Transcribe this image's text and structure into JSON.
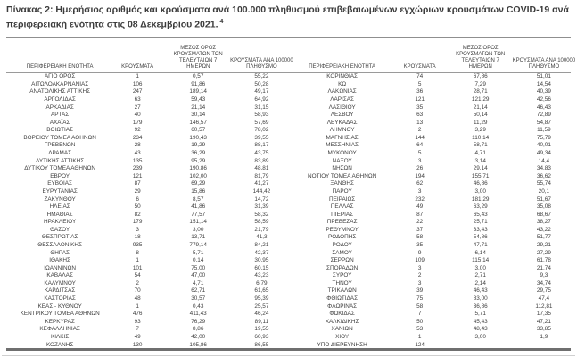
{
  "caption": {
    "text": "Πίνακας 2: Ημερήσιος αριθμός και κρούσματα ανά 100.000 πληθυσμού επιβεβαιωμένων εγχώριων κρουσμάτων COVID-19 ανά περιφερειακή ενότητα στις 08 Δεκεμβρίου 2021.",
    "footnote_marker": "4"
  },
  "table": {
    "columns": [
      "ΠΕΡΙΦΕΡΕΙΑΚΗ ΕΝΟΤΗΤΑ",
      "ΚΡΟΥΣΜΑΤΑ",
      "ΜΕΣΟΣ ΟΡΟΣ ΚΡΟΥΣΜΑΤΩΝ ΤΩΝ ΤΕΛΕΥΤΑΙΩΝ 7 ΗΜΕΡΩΝ",
      "ΚΡΟΥΣΜΑΤΑ ΑΝΑ 100000 ΠΛΗΘΥΣΜΟ"
    ],
    "left_rows": [
      [
        "ΑΓΙΟ ΟΡΟΣ",
        "1",
        "0,57",
        "55,22"
      ],
      [
        "ΑΙΤΩΛΟΑΚΑΡΝΑΝΙΑΣ",
        "106",
        "91,86",
        "50,28"
      ],
      [
        "ΑΝΑΤΟΛΙΚΗΣ ΑΤΤΙΚΗΣ",
        "247",
        "189,14",
        "49,17"
      ],
      [
        "ΑΡΓΟΛΙΔΑΣ",
        "63",
        "59,43",
        "64,92"
      ],
      [
        "ΑΡΚΑΔΙΑΣ",
        "27",
        "21,14",
        "31,15"
      ],
      [
        "ΑΡΤΑΣ",
        "40",
        "30,14",
        "58,93"
      ],
      [
        "ΑΧΑΪΑΣ",
        "179",
        "146,57",
        "57,69"
      ],
      [
        "ΒΟΙΩΤΙΑΣ",
        "92",
        "60,57",
        "78,02"
      ],
      [
        "ΒΟΡΕΙΟΥ ΤΟΜΕΑ ΑΘΗΝΩΝ",
        "234",
        "190,43",
        "39,55"
      ],
      [
        "ΓΡΕΒΕΝΩΝ",
        "28",
        "19,29",
        "88,17"
      ],
      [
        "ΔΡΑΜΑΣ",
        "43",
        "36,29",
        "43,75"
      ],
      [
        "ΔΥΤΙΚΗΣ ΑΤΤΙΚΗΣ",
        "135",
        "95,29",
        "83,89"
      ],
      [
        "ΔΥΤΙΚΟΥ ΤΟΜΕΑ ΑΘΗΝΩΝ",
        "239",
        "190,86",
        "48,81"
      ],
      [
        "ΕΒΡΟΥ",
        "121",
        "102,00",
        "81,79"
      ],
      [
        "ΕΥΒΟΙΑΣ",
        "87",
        "69,29",
        "41,27"
      ],
      [
        "ΕΥΡΥΤΑΝΙΑΣ",
        "29",
        "15,86",
        "144,42"
      ],
      [
        "ΖΑΚΥΝΘΟΥ",
        "6",
        "8,57",
        "14,72"
      ],
      [
        "ΗΛΕΙΑΣ",
        "50",
        "41,86",
        "31,39"
      ],
      [
        "ΗΜΑΘΙΑΣ",
        "82",
        "77,57",
        "58,32"
      ],
      [
        "ΗΡΑΚΛΕΙΟΥ",
        "179",
        "151,14",
        "58,59"
      ],
      [
        "ΘΑΣΟΥ",
        "3",
        "3,00",
        "21,79"
      ],
      [
        "ΘΕΣΠΡΩΤΙΑΣ",
        "18",
        "13,71",
        "41,3"
      ],
      [
        "ΘΕΣΣΑΛΟΝΙΚΗΣ",
        "935",
        "779,14",
        "84,21"
      ],
      [
        "ΘΗΡΑΣ",
        "8",
        "5,71",
        "42,37"
      ],
      [
        "ΙΘΑΚΗΣ",
        "1",
        "0,14",
        "30,95"
      ],
      [
        "ΙΩΑΝΝΙΝΩΝ",
        "101",
        "75,00",
        "60,15"
      ],
      [
        "ΚΑΒΑΛΑΣ",
        "54",
        "47,00",
        "43,23"
      ],
      [
        "ΚΑΛΥΜΝΟΥ",
        "2",
        "4,71",
        "6,79"
      ],
      [
        "ΚΑΡΔΙΤΣΑΣ",
        "70",
        "62,71",
        "61,65"
      ],
      [
        "ΚΑΣΤΟΡΙΑΣ",
        "48",
        "30,57",
        "95,39"
      ],
      [
        "ΚΕΑΣ - ΚΥΘΝΟΥ",
        "1",
        "0,43",
        "25,57"
      ],
      [
        "ΚΕΝΤΡΙΚΟΥ ΤΟΜΕΑ ΑΘΗΝΩΝ",
        "476",
        "411,43",
        "46,24"
      ],
      [
        "ΚΕΡΚΥΡΑΣ",
        "93",
        "76,29",
        "89,11"
      ],
      [
        "ΚΕΦΑΛΛΗΝΙΑΣ",
        "7",
        "8,86",
        "19,55"
      ],
      [
        "ΚΙΛΚΙΣ",
        "49",
        "42,00",
        "60,93"
      ],
      [
        "ΚΟΖΑΝΗΣ",
        "130",
        "105,86",
        "86,55"
      ]
    ],
    "right_rows": [
      [
        "ΚΟΡΙΝΘΙΑΣ",
        "74",
        "67,86",
        "51,01"
      ],
      [
        "ΚΩ",
        "5",
        "7,29",
        "14,54"
      ],
      [
        "ΛΑΚΩΝΙΑΣ",
        "36",
        "28,71",
        "40,39"
      ],
      [
        "ΛΑΡΙΣΑΣ",
        "121",
        "121,29",
        "42,56"
      ],
      [
        "ΛΑΣΙΘΙΟΥ",
        "35",
        "21,14",
        "46,43"
      ],
      [
        "ΛΕΣΒΟΥ",
        "63",
        "50,14",
        "72,89"
      ],
      [
        "ΛΕΥΚΑΔΑΣ",
        "13",
        "11,29",
        "54,87"
      ],
      [
        "ΛΗΜΝΟΥ",
        "2",
        "3,29",
        "11,59"
      ],
      [
        "ΜΑΓΝΗΣΙΑΣ",
        "144",
        "110,14",
        "75,79"
      ],
      [
        "ΜΕΣΣΗΝΙΑΣ",
        "64",
        "58,71",
        "40,01"
      ],
      [
        "ΜΥΚΟΝΟΥ",
        "5",
        "4,71",
        "49,34"
      ],
      [
        "ΝΑΞΟΥ",
        "3",
        "3,14",
        "14,4"
      ],
      [
        "ΝΗΣΩΝ",
        "26",
        "29,14",
        "34,83"
      ],
      [
        "ΝΟΤΙΟΥ ΤΟΜΕΑ ΑΘΗΝΩΝ",
        "194",
        "155,71",
        "36,62"
      ],
      [
        "ΞΑΝΘΗΣ",
        "62",
        "46,86",
        "55,74"
      ],
      [
        "ΠΑΡΟΥ",
        "3",
        "3,00",
        "20,1"
      ],
      [
        "ΠΕΙΡΑΙΩΣ",
        "232",
        "181,29",
        "51,67"
      ],
      [
        "ΠΕΛΛΑΣ",
        "49",
        "63,29",
        "35,08"
      ],
      [
        "ΠΙΕΡΙΑΣ",
        "87",
        "65,43",
        "68,67"
      ],
      [
        "ΠΡΕΒΕΖΑΣ",
        "22",
        "25,71",
        "38,27"
      ],
      [
        "ΡΕΘΥΜΝΟΥ",
        "37",
        "33,43",
        "43,22"
      ],
      [
        "ΡΟΔΟΠΗΣ",
        "58",
        "54,86",
        "51,77"
      ],
      [
        "ΡΟΔΟΥ",
        "35",
        "47,71",
        "29,21"
      ],
      [
        "ΣΑΜΟΥ",
        "9",
        "6,14",
        "27,29"
      ],
      [
        "ΣΕΡΡΩΝ",
        "109",
        "115,14",
        "61,78"
      ],
      [
        "ΣΠΟΡΑΔΩΝ",
        "3",
        "3,00",
        "21,74"
      ],
      [
        "ΣΥΡΟΥ",
        "2",
        "2,71",
        "9,3"
      ],
      [
        "ΤΗΝΟΥ",
        "3",
        "2,14",
        "34,74"
      ],
      [
        "ΤΡΙΚΑΛΩΝ",
        "39",
        "46,43",
        "29,75"
      ],
      [
        "ΦΘΙΩΤΙΔΑΣ",
        "75",
        "83,00",
        "47,4"
      ],
      [
        "ΦΛΩΡΙΝΑΣ",
        "58",
        "36,86",
        "112,81"
      ],
      [
        "ΦΩΚΙΔΑΣ",
        "7",
        "5,71",
        "17,35"
      ],
      [
        "ΧΑΛΚΙΔΙΚΗΣ",
        "50",
        "45,43",
        "47,21"
      ],
      [
        "ΧΑΝΙΩΝ",
        "53",
        "48,43",
        "33,85"
      ],
      [
        "ΧΙΟΥ",
        "1",
        "3,00",
        "1,9"
      ],
      [
        "ΥΠΟ ΔΙΕΡΕΥΝΗΣΗ",
        "124",
        "",
        ""
      ]
    ]
  }
}
